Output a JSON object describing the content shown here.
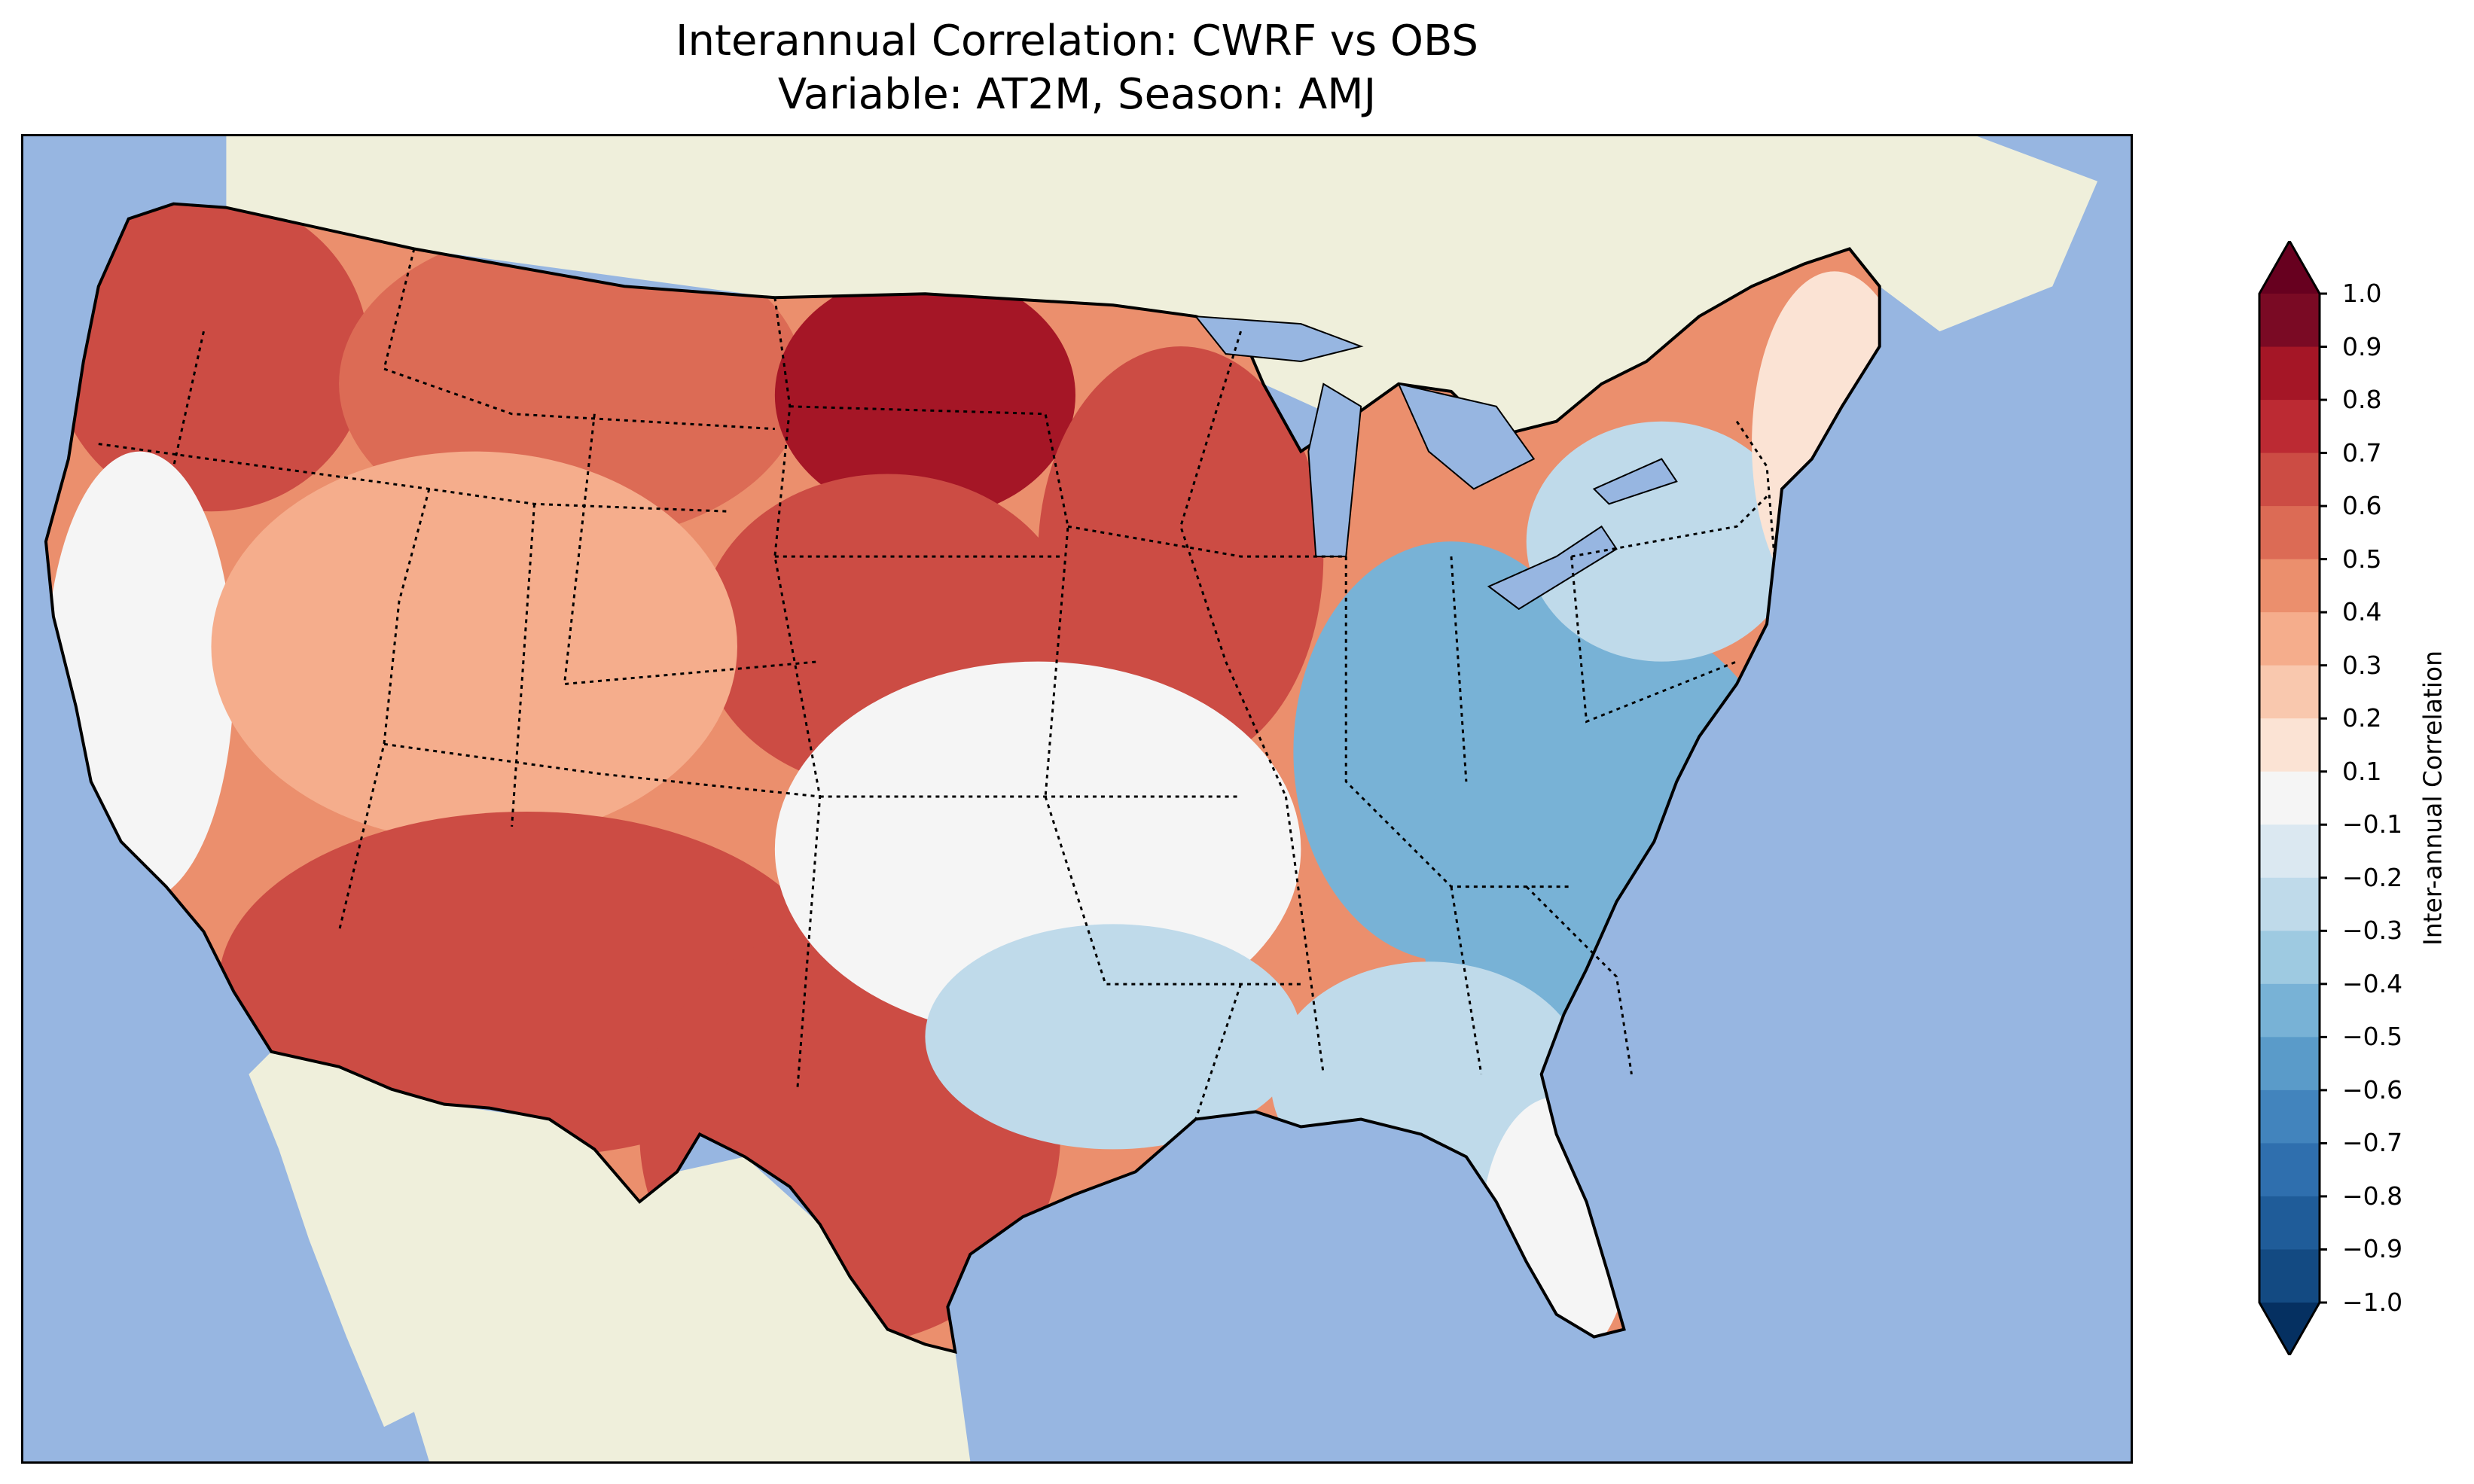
{
  "title": {
    "line1": "Interannual Correlation: CWRF vs OBS",
    "line2": "Variable: AT2M, Season: AMJ"
  },
  "map": {
    "region": "Contiguous United States",
    "ocean_color": "#97b6e1",
    "land_color": "#efefdb",
    "field": "Interannual correlation of AT2M, CWRF vs OBS, AMJ",
    "regions": [
      {
        "name": "Pacific Northwest",
        "value": 0.7
      },
      {
        "name": "Northern Rockies",
        "value": 0.6
      },
      {
        "name": "North Dakota",
        "value": 0.8
      },
      {
        "name": "South Dakota / Nebraska",
        "value": 0.7
      },
      {
        "name": "Minnesota / Iowa",
        "value": 0.7
      },
      {
        "name": "California coast",
        "value": 0.0
      },
      {
        "name": "Great Basin",
        "value": 0.3
      },
      {
        "name": "Arizona / New Mexico",
        "value": 0.7
      },
      {
        "name": "Texas",
        "value": 0.7
      },
      {
        "name": "Kansas / Missouri",
        "value": 0.0
      },
      {
        "name": "Oklahoma / Arkansas",
        "value": -0.2
      },
      {
        "name": "Ohio Valley",
        "value": -0.4
      },
      {
        "name": "Appalachians / Carolinas",
        "value": -0.4
      },
      {
        "name": "Pennsylvania / New York",
        "value": -0.3
      },
      {
        "name": "Southeast",
        "value": -0.2
      },
      {
        "name": "Maine",
        "value": 0.2
      },
      {
        "name": "Florida",
        "value": 0.0
      }
    ]
  },
  "colorbar": {
    "label": "Inter-annual Correlation",
    "ticks": [
      "1.0",
      "0.9",
      "0.8",
      "0.7",
      "0.6",
      "0.5",
      "0.4",
      "0.3",
      "0.2",
      "0.1",
      "−0.1",
      "−0.2",
      "−0.3",
      "−0.4",
      "−0.5",
      "−0.6",
      "−0.7",
      "−0.8",
      "−0.9",
      "−1.0"
    ],
    "tick_values": [
      1.0,
      0.9,
      0.8,
      0.7,
      0.6,
      0.5,
      0.4,
      0.3,
      0.2,
      0.1,
      -0.1,
      -0.2,
      -0.3,
      -0.4,
      -0.5,
      -0.6,
      -0.7,
      -0.8,
      -0.9,
      -1.0
    ],
    "over_color": "#67001f",
    "under_color": "#053061",
    "colors_top_to_bottom": [
      "#7a0a24",
      "#a51626",
      "#bc2a33",
      "#cc4c44",
      "#dc6b55",
      "#eb8f6d",
      "#f5ad8c",
      "#f9c8ae",
      "#fbe3d4",
      "#f5f5f5",
      "#dbe8f1",
      "#bfdaea",
      "#9ecae1",
      "#78b2d6",
      "#5a9bc9",
      "#4284bd",
      "#2f6fae",
      "#1f5c99",
      "#134a82"
    ]
  }
}
